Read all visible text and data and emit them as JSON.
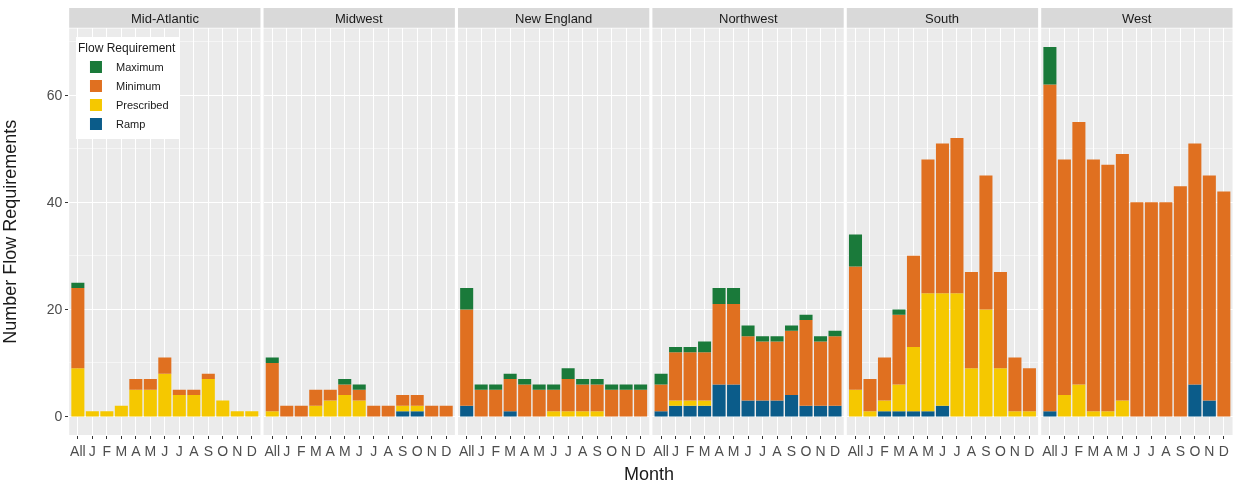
{
  "chart_data": [
    {
      "type": "bar",
      "stacked": true,
      "title": "Mid-Atlantic",
      "ylabel": "Number Flow Requirements",
      "legend": "top left",
      "legend_title": "Flow Requirement",
      "grid": true,
      "ylim": [
        -3.45,
        72.45
      ],
      "yticks": [
        0,
        20,
        40,
        60
      ],
      "categories": [
        "All",
        "J",
        "F",
        "M",
        "A",
        "M",
        "J",
        "J",
        "A",
        "S",
        "O",
        "N",
        "D"
      ],
      "series": [
        {
          "name": "Ramp",
          "color": "#0b5c8a",
          "values": [
            0,
            0,
            0,
            0,
            0,
            0,
            0,
            0,
            0,
            0,
            0,
            0,
            0
          ]
        },
        {
          "name": "Prescribed",
          "color": "#f5c800",
          "values": [
            9,
            1,
            1,
            2,
            5,
            5,
            8,
            4,
            4,
            7,
            3,
            1,
            1
          ]
        },
        {
          "name": "Minimum",
          "color": "#e07020",
          "values": [
            15,
            0,
            0,
            0,
            2,
            2,
            3,
            1,
            1,
            1,
            0,
            0,
            0
          ]
        },
        {
          "name": "Maximum",
          "color": "#1a7a3a",
          "values": [
            1,
            0,
            0,
            0,
            0,
            0,
            0,
            0,
            0,
            0,
            0,
            0,
            0
          ]
        }
      ]
    },
    {
      "type": "bar",
      "stacked": true,
      "title": "Midwest",
      "grid": true,
      "tick_labels": "x",
      "ylim": [
        -3.45,
        72.45
      ],
      "categories": [
        "All",
        "J",
        "F",
        "M",
        "A",
        "M",
        "J",
        "J",
        "A",
        "S",
        "O",
        "N",
        "D"
      ],
      "series": [
        {
          "color": "#0b5c8a",
          "values": [
            0,
            0,
            0,
            0,
            0,
            0,
            0,
            0,
            0,
            1,
            1,
            0,
            0
          ]
        },
        {
          "color": "#f5c800",
          "values": [
            1,
            0,
            0,
            2,
            3,
            4,
            3,
            0,
            0,
            1,
            1,
            0,
            0
          ]
        },
        {
          "color": "#e07020",
          "values": [
            9,
            2,
            2,
            3,
            2,
            2,
            2,
            2,
            2,
            2,
            2,
            2,
            2
          ]
        },
        {
          "color": "#1a7a3a",
          "values": [
            1,
            0,
            0,
            0,
            0,
            1,
            1,
            0,
            0,
            0,
            0,
            0,
            0
          ]
        }
      ]
    },
    {
      "type": "bar",
      "stacked": true,
      "title": "New England",
      "xlabel": "Month",
      "grid": true,
      "tick_labels": "x",
      "ylim": [
        -3.45,
        72.45
      ],
      "categories": [
        "All",
        "J",
        "F",
        "M",
        "A",
        "M",
        "J",
        "J",
        "A",
        "S",
        "O",
        "N",
        "D"
      ],
      "series": [
        {
          "color": "#0b5c8a",
          "values": [
            2,
            0,
            0,
            1,
            0,
            0,
            0,
            0,
            0,
            0,
            0,
            0,
            0
          ]
        },
        {
          "color": "#f5c800",
          "values": [
            0,
            0,
            0,
            0,
            0,
            0,
            1,
            1,
            1,
            1,
            0,
            0,
            0
          ]
        },
        {
          "color": "#e07020",
          "values": [
            18,
            5,
            5,
            6,
            6,
            5,
            4,
            6,
            5,
            5,
            5,
            5,
            5
          ]
        },
        {
          "color": "#1a7a3a",
          "values": [
            4,
            1,
            1,
            1,
            1,
            1,
            1,
            2,
            1,
            1,
            1,
            1,
            1
          ]
        }
      ]
    },
    {
      "type": "bar",
      "stacked": true,
      "title": "Northwest",
      "grid": true,
      "tick_labels": "x",
      "ylim": [
        -3.45,
        72.45
      ],
      "categories": [
        "All",
        "J",
        "F",
        "M",
        "A",
        "M",
        "J",
        "J",
        "A",
        "S",
        "O",
        "N",
        "D"
      ],
      "series": [
        {
          "color": "#0b5c8a",
          "values": [
            1,
            2,
            2,
            2,
            6,
            6,
            3,
            3,
            3,
            4,
            2,
            2,
            2
          ]
        },
        {
          "color": "#f5c800",
          "values": [
            0,
            1,
            1,
            1,
            0,
            0,
            0,
            0,
            0,
            0,
            0,
            0,
            0
          ]
        },
        {
          "color": "#e07020",
          "values": [
            5,
            9,
            9,
            9,
            15,
            15,
            12,
            11,
            11,
            12,
            16,
            12,
            13
          ]
        },
        {
          "color": "#1a7a3a",
          "values": [
            2,
            1,
            1,
            2,
            3,
            3,
            2,
            1,
            1,
            1,
            1,
            1,
            1
          ]
        }
      ]
    },
    {
      "type": "bar",
      "stacked": true,
      "title": "South",
      "grid": true,
      "tick_labels": "x",
      "ylim": [
        -3.45,
        72.45
      ],
      "categories": [
        "All",
        "J",
        "F",
        "M",
        "A",
        "M",
        "J",
        "J",
        "A",
        "S",
        "O",
        "N",
        "D"
      ],
      "series": [
        {
          "color": "#0b5c8a",
          "values": [
            0,
            0,
            1,
            1,
            1,
            1,
            2,
            0,
            0,
            0,
            0,
            0,
            0
          ]
        },
        {
          "color": "#f5c800",
          "values": [
            5,
            1,
            2,
            5,
            12,
            22,
            21,
            23,
            9,
            20,
            9,
            1,
            1
          ]
        },
        {
          "color": "#e07020",
          "values": [
            23,
            6,
            8,
            13,
            17,
            25,
            28,
            29,
            18,
            25,
            18,
            10,
            8
          ]
        },
        {
          "color": "#1a7a3a",
          "values": [
            6,
            0,
            0,
            1,
            0,
            0,
            0,
            0,
            0,
            0,
            0,
            0,
            0
          ]
        }
      ]
    },
    {
      "type": "bar",
      "stacked": true,
      "title": "West",
      "grid": true,
      "tick_labels": "x",
      "ylim": [
        -3.45,
        72.45
      ],
      "categories": [
        "All",
        "J",
        "F",
        "M",
        "A",
        "M",
        "J",
        "J",
        "A",
        "S",
        "O",
        "N",
        "D"
      ],
      "series": [
        {
          "color": "#0b5c8a",
          "values": [
            1,
            0,
            0,
            0,
            0,
            0,
            0,
            0,
            0,
            0,
            6,
            3,
            0
          ]
        },
        {
          "color": "#f5c800",
          "values": [
            0,
            4,
            6,
            1,
            1,
            3,
            0,
            0,
            0,
            0,
            0,
            0,
            0
          ]
        },
        {
          "color": "#e07020",
          "values": [
            61,
            44,
            49,
            47,
            46,
            46,
            40,
            40,
            40,
            43,
            45,
            42,
            42
          ]
        },
        {
          "color": "#1a7a3a",
          "values": [
            7,
            0,
            0,
            0,
            0,
            0,
            0,
            0,
            0,
            0,
            0,
            0,
            0
          ]
        }
      ]
    }
  ]
}
